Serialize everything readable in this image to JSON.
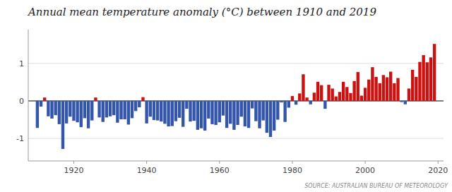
{
  "chart_data": {
    "type": "bar",
    "title": "Annual mean temperature anomaly (°C) between 1910 and 2019",
    "annotations": [
      "SOURCE: AUSTRALIAN BUREAU OF METEOROLOGY"
    ],
    "x": [
      1910,
      1911,
      1912,
      1913,
      1914,
      1915,
      1916,
      1917,
      1918,
      1919,
      1920,
      1921,
      1922,
      1923,
      1924,
      1925,
      1926,
      1927,
      1928,
      1929,
      1930,
      1931,
      1932,
      1933,
      1934,
      1935,
      1936,
      1937,
      1938,
      1939,
      1940,
      1941,
      1942,
      1943,
      1944,
      1945,
      1946,
      1947,
      1948,
      1949,
      1950,
      1951,
      1952,
      1953,
      1954,
      1955,
      1956,
      1957,
      1958,
      1959,
      1960,
      1961,
      1962,
      1963,
      1964,
      1965,
      1966,
      1967,
      1968,
      1969,
      1970,
      1971,
      1972,
      1973,
      1974,
      1975,
      1976,
      1977,
      1978,
      1979,
      1980,
      1981,
      1982,
      1983,
      1984,
      1985,
      1986,
      1987,
      1988,
      1989,
      1990,
      1991,
      1992,
      1993,
      1994,
      1995,
      1996,
      1997,
      1998,
      1999,
      2000,
      2001,
      2002,
      2003,
      2004,
      2005,
      2006,
      2007,
      2008,
      2009,
      2010,
      2011,
      2012,
      2013,
      2014,
      2015,
      2016,
      2017,
      2018,
      2019
    ],
    "values": [
      -0.72,
      -0.15,
      0.09,
      -0.41,
      -0.47,
      -0.38,
      -0.62,
      -1.28,
      -0.6,
      -0.42,
      -0.53,
      -0.57,
      -0.7,
      -0.46,
      -0.73,
      -0.52,
      0.09,
      -0.44,
      -0.56,
      -0.44,
      -0.41,
      -0.38,
      -0.58,
      -0.49,
      -0.49,
      -0.63,
      -0.46,
      -0.27,
      -0.17,
      0.1,
      -0.6,
      -0.42,
      -0.51,
      -0.52,
      -0.55,
      -0.61,
      -0.68,
      -0.67,
      -0.54,
      -0.45,
      -0.69,
      -0.21,
      -0.55,
      -0.53,
      -0.77,
      -0.73,
      -0.79,
      -0.47,
      -0.62,
      -0.64,
      -0.57,
      -0.39,
      -0.72,
      -0.61,
      -0.77,
      -0.64,
      -0.42,
      -0.68,
      -0.72,
      -0.2,
      -0.54,
      -0.73,
      -0.52,
      -0.85,
      -0.96,
      -0.79,
      -0.5,
      -0.04,
      -0.56,
      -0.18,
      0.13,
      -0.1,
      0.2,
      0.71,
      0.09,
      -0.09,
      0.22,
      0.51,
      0.42,
      -0.21,
      0.43,
      0.33,
      0.12,
      0.24,
      0.51,
      0.37,
      0.21,
      0.53,
      0.77,
      0.14,
      0.35,
      0.57,
      0.9,
      0.64,
      0.47,
      0.69,
      0.63,
      0.78,
      0.47,
      0.61,
      -0.03,
      -0.09,
      0.33,
      0.83,
      0.64,
      1.04,
      1.22,
      1.03,
      1.16,
      1.52
    ],
    "colors": [
      "#3355aa",
      "#3355aa",
      "#cc1111",
      "#3355aa",
      "#3355aa",
      "#3355aa",
      "#3355aa",
      "#3355aa",
      "#3355aa",
      "#3355aa",
      "#3355aa",
      "#3355aa",
      "#3355aa",
      "#3355aa",
      "#3355aa",
      "#3355aa",
      "#cc1111",
      "#3355aa",
      "#3355aa",
      "#3355aa",
      "#3355aa",
      "#3355aa",
      "#3355aa",
      "#3355aa",
      "#3355aa",
      "#3355aa",
      "#3355aa",
      "#3355aa",
      "#3355aa",
      "#cc1111",
      "#3355aa",
      "#3355aa",
      "#3355aa",
      "#3355aa",
      "#3355aa",
      "#3355aa",
      "#3355aa",
      "#3355aa",
      "#3355aa",
      "#3355aa",
      "#3355aa",
      "#3355aa",
      "#3355aa",
      "#3355aa",
      "#3355aa",
      "#3355aa",
      "#3355aa",
      "#3355aa",
      "#3355aa",
      "#3355aa",
      "#3355aa",
      "#3355aa",
      "#3355aa",
      "#3355aa",
      "#3355aa",
      "#3355aa",
      "#3355aa",
      "#3355aa",
      "#3355aa",
      "#3355aa",
      "#3355aa",
      "#3355aa",
      "#3355aa",
      "#3355aa",
      "#3355aa",
      "#3355aa",
      "#3355aa",
      "#3355aa",
      "#3355aa",
      "#3355aa",
      "#cc1111",
      "#3355aa",
      "#cc1111",
      "#cc1111",
      "#cc1111",
      "#3355aa",
      "#cc1111",
      "#cc1111",
      "#cc1111",
      "#3355aa",
      "#cc1111",
      "#cc1111",
      "#cc1111",
      "#cc1111",
      "#cc1111",
      "#cc1111",
      "#cc1111",
      "#cc1111",
      "#cc1111",
      "#cc1111",
      "#cc1111",
      "#cc1111",
      "#cc1111",
      "#cc1111",
      "#cc1111",
      "#cc1111",
      "#cc1111",
      "#cc1111",
      "#cc1111",
      "#cc1111",
      "#3355aa",
      "#3355aa",
      "#cc1111",
      "#cc1111",
      "#cc1111",
      "#cc1111",
      "#cc1111",
      "#cc1111",
      "#cc1111",
      "#cc1111"
    ],
    "xlim": [
      1907.5,
      2021.5
    ],
    "xticks": [
      1920,
      1940,
      1960,
      1980,
      2000,
      2020
    ],
    "ylim": [
      -1.6,
      1.9
    ],
    "yticks": [
      -1,
      0,
      1
    ],
    "grid": true
  }
}
